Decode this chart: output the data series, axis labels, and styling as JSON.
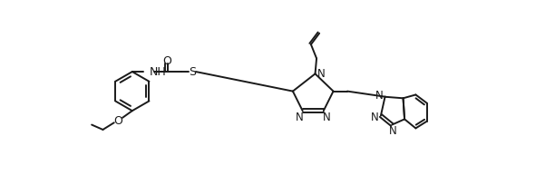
{
  "bg_color": "#ffffff",
  "line_color": "#1a1a1a",
  "lw": 1.4,
  "figsize": [
    6.12,
    2.05
  ],
  "dpi": 100,
  "xlim": [
    0,
    612
  ],
  "ylim": [
    0,
    205
  ]
}
